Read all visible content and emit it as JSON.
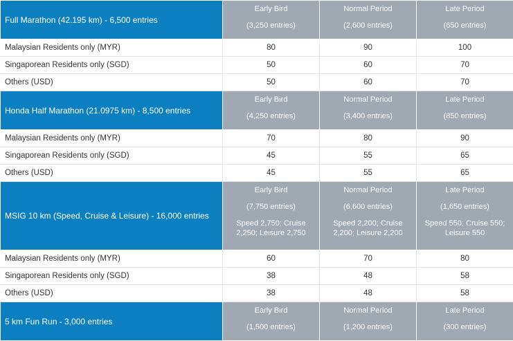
{
  "sections": [
    {
      "category": "Full Marathon (42.195 km) - 6,500 entries",
      "phases": [
        {
          "name": "Early Bird",
          "entries": "(3,250 entries)"
        },
        {
          "name": "Normal Period",
          "entries": "(2,600 entries)"
        },
        {
          "name": "Late Period",
          "entries": "(650 entries)"
        }
      ],
      "rows": [
        {
          "label": "Malaysian Residents only (MYR)",
          "values": [
            "80",
            "90",
            "100"
          ]
        },
        {
          "label": "Singaporean Residents only (SGD)",
          "values": [
            "50",
            "60",
            "70"
          ]
        },
        {
          "label": "Others (USD)",
          "values": [
            "50",
            "60",
            "70"
          ]
        }
      ]
    },
    {
      "category": "Honda Half Marathon (21.0975 km) - 8,500 entries",
      "phases": [
        {
          "name": "Early Bird",
          "entries": "(4,250 entries)"
        },
        {
          "name": "Normal Period",
          "entries": "(3,400 entries)"
        },
        {
          "name": "Late Period",
          "entries": "(850 entries)"
        }
      ],
      "rows": [
        {
          "label": "Malaysian Residents only (MYR)",
          "values": [
            "70",
            "80",
            "90"
          ]
        },
        {
          "label": "Singaporean Residents only (SGD)",
          "values": [
            "45",
            "55",
            "65"
          ]
        },
        {
          "label": "Others (USD)",
          "values": [
            "45",
            "55",
            "65"
          ]
        }
      ]
    },
    {
      "category": "MSIG 10 km (Speed, Cruise & Leisure) - 16,000 entries",
      "phases": [
        {
          "name": "Early Bird",
          "entries": "(7,750 entries)",
          "split": "Speed 2,750; Cruise 2,250; Leisure 2,750"
        },
        {
          "name": "Normal Period",
          "entries": "(6,600 entries)",
          "split": "Speed 2,200; Cruise 2,200; Leisure 2,200"
        },
        {
          "name": "Late Period",
          "entries": "(1,650 entries)",
          "split": "Speed 550; Cruise 550; Leisure 550"
        }
      ],
      "rows": [
        {
          "label": "Malaysian Residents only (MYR)",
          "values": [
            "60",
            "70",
            "80"
          ]
        },
        {
          "label": "Singaporean Residents only (SGD)",
          "values": [
            "38",
            "48",
            "58"
          ]
        },
        {
          "label": "Others (USD)",
          "values": [
            "38",
            "48",
            "58"
          ]
        }
      ]
    },
    {
      "category": "5 km Fun Run - 3,000 entries",
      "phases": [
        {
          "name": "Early Bird",
          "entries": "(1,500 entries)"
        },
        {
          "name": "Normal Period",
          "entries": "(1,200 entries)"
        },
        {
          "name": "Late Period",
          "entries": "(300 entries)"
        }
      ]
    }
  ],
  "colors": {
    "category_bg": "#0b7fbf",
    "phase_bg": "#a0a8b1",
    "row_border": "#e3e3e3",
    "text": "#333333"
  }
}
